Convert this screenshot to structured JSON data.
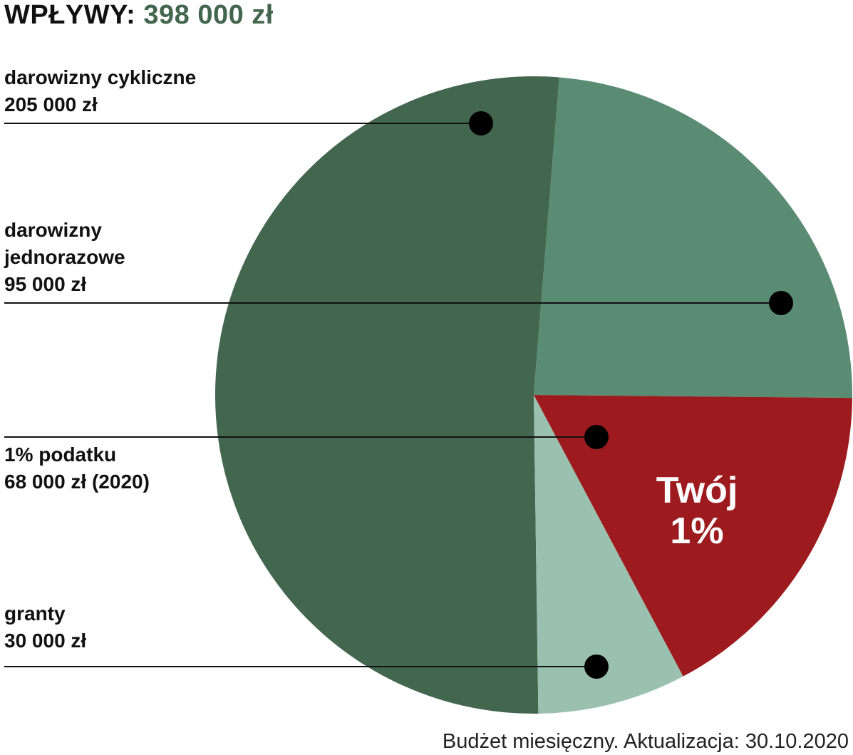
{
  "header": {
    "title_label": "WPŁYWY",
    "title_colon": ":",
    "total": "398 000 zł"
  },
  "chart_data": {
    "type": "pie",
    "total": 398000,
    "slices": [
      {
        "key": "cykliczne",
        "label": "darowizny cykliczne",
        "label_lines": [
          "darowizny cykliczne"
        ],
        "value": 205000,
        "value_text": "205 000 zł",
        "color": "#43664f"
      },
      {
        "key": "jednorazowe",
        "label": "darowizny jednorazowe",
        "label_lines": [
          "darowizny",
          "jednorazowe"
        ],
        "value": 95000,
        "value_text": "95 000 zł",
        "color": "#5a8c74"
      },
      {
        "key": "podatek",
        "label": "1% podatku",
        "label_lines": [
          "1% podatku"
        ],
        "value": 68000,
        "value_text": "68 000 zł (2020)",
        "color": "#9d1b1e"
      },
      {
        "key": "granty",
        "label": "granty",
        "label_lines": [
          "granty"
        ],
        "value": 30000,
        "value_text": "30 000 zł",
        "color": "#9ac1af"
      }
    ],
    "annotation": {
      "line1": "Twój",
      "line2": "1%",
      "color": "#ffffff"
    }
  },
  "footnote": "Budżet miesięczny. Aktualizacja: 30.10.2020"
}
